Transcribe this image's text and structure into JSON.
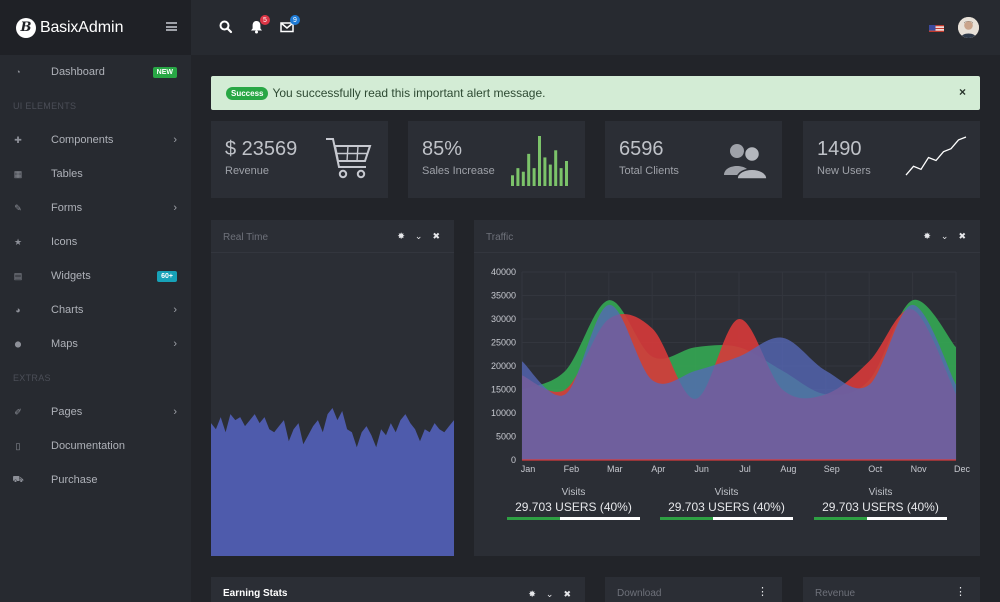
{
  "brand": {
    "name_a": "Basix",
    "name_b": "Admin"
  },
  "sidebar": {
    "items": [
      {
        "type": "item",
        "name": "dashboard",
        "icon": "dashboard-icon",
        "glyph": "◔",
        "label": "Dashboard",
        "badge": "NEW",
        "badge_color": "#28a745"
      },
      {
        "type": "heading",
        "label": "UI ELEMENTS"
      },
      {
        "type": "item",
        "name": "components",
        "icon": "puzzle-icon",
        "glyph": "✚",
        "label": "Components",
        "chevron": true
      },
      {
        "type": "item",
        "name": "tables",
        "icon": "table-icon",
        "glyph": "▦",
        "label": "Tables"
      },
      {
        "type": "item",
        "name": "forms",
        "icon": "edit-icon",
        "glyph": "✎",
        "label": "Forms",
        "chevron": true
      },
      {
        "type": "item",
        "name": "icons",
        "icon": "star-icon",
        "glyph": "★",
        "label": "Icons"
      },
      {
        "type": "item",
        "name": "widgets",
        "icon": "calculator-icon",
        "glyph": "▤",
        "label": "Widgets",
        "badge": "60+",
        "badge_color": "#17a2b8"
      },
      {
        "type": "item",
        "name": "charts",
        "icon": "pie-chart-icon",
        "glyph": "◕",
        "label": "Charts",
        "chevron": true
      },
      {
        "type": "item",
        "name": "maps",
        "icon": "map-marker-icon",
        "glyph": "⬤",
        "label": "Maps",
        "chevron": true
      },
      {
        "type": "heading",
        "label": "EXTRAS"
      },
      {
        "type": "item",
        "name": "pages",
        "icon": "paperclip-icon",
        "glyph": "✐",
        "label": "Pages",
        "chevron": true
      },
      {
        "type": "item",
        "name": "documentation",
        "icon": "file-icon",
        "glyph": "▯",
        "label": "Documentation"
      },
      {
        "type": "item",
        "name": "purchase",
        "icon": "cart-icon",
        "glyph": "⛟",
        "label": "Purchase"
      }
    ]
  },
  "topbar": {
    "notifications_count": "5",
    "notifications_color": "#dc3545",
    "messages_count": "9",
    "messages_color": "#1e7bd6"
  },
  "alert": {
    "badge": "Success",
    "message": "You successfully read this important alert message.",
    "close": "×"
  },
  "stats": [
    {
      "name": "revenue",
      "value": "$ 23569",
      "label": "Revenue",
      "icon": "cart-icon"
    },
    {
      "name": "sales",
      "value": "85%",
      "label": "Sales Increase",
      "icon": "bar-sparkline-icon"
    },
    {
      "name": "clients",
      "value": "6596",
      "label": "Total Clients",
      "icon": "users-icon"
    },
    {
      "name": "users",
      "value": "1490",
      "label": "New Users",
      "icon": "line-sparkline-icon"
    }
  ],
  "sales_sparkline": {
    "values": [
      3,
      5,
      4,
      9,
      5,
      14,
      8,
      6,
      10,
      5,
      7
    ]
  },
  "users_sparkline": {
    "values": [
      2,
      5,
      4,
      8,
      7,
      10,
      11,
      14,
      15
    ]
  },
  "cards": {
    "realtime": {
      "title": "Real Time"
    },
    "traffic": {
      "title": "Traffic"
    },
    "earning": {
      "title": "Earning Stats"
    },
    "download": {
      "title": "Download"
    },
    "revenue": {
      "title": "Revenue"
    }
  },
  "realtime_data": {
    "values": [
      44,
      42,
      46,
      41,
      47,
      45,
      46,
      43,
      45,
      47,
      44,
      46,
      42,
      41,
      43,
      45,
      38,
      42,
      44,
      37,
      40,
      43,
      45,
      41,
      47,
      49,
      45,
      48,
      42,
      41,
      36,
      41,
      43,
      40,
      36,
      42,
      40,
      44,
      41,
      45,
      47,
      44,
      42,
      38,
      42,
      41,
      44,
      42,
      41,
      43,
      45
    ],
    "max": 100,
    "color": "#4e5bac"
  },
  "chart_data": {
    "type": "area",
    "categories": [
      "Jan",
      "Feb",
      "Mar",
      "Apr",
      "Jun",
      "Jul",
      "Aug",
      "Sep",
      "Oct",
      "Nov",
      "Dec"
    ],
    "ylim": [
      0,
      40000
    ],
    "yticks": [
      "40000",
      "35000",
      "30000",
      "25000",
      "20000",
      "15000",
      "10000",
      "5000",
      "0"
    ],
    "series": [
      {
        "color": "#34a853",
        "values": [
          15000,
          19000,
          34000,
          22000,
          24000,
          24000,
          19000,
          14000,
          17000,
          34000,
          24000
        ]
      },
      {
        "color": "#d73a3a",
        "values": [
          18000,
          15000,
          30000,
          28000,
          13000,
          30000,
          15000,
          14000,
          21000,
          32000,
          14000
        ]
      },
      {
        "color": "#5668b8",
        "values": [
          21000,
          14000,
          33000,
          17000,
          19000,
          22000,
          26000,
          19000,
          16000,
          33000,
          16000
        ]
      }
    ],
    "legend": [
      {
        "label": "Visits",
        "value": "29.703 USERS (40%)",
        "percent": 40
      },
      {
        "label": "Visits",
        "value": "29.703 USERS (40%)",
        "percent": 40
      },
      {
        "label": "Visits",
        "value": "29.703 USERS (40%)",
        "percent": 40
      }
    ]
  }
}
